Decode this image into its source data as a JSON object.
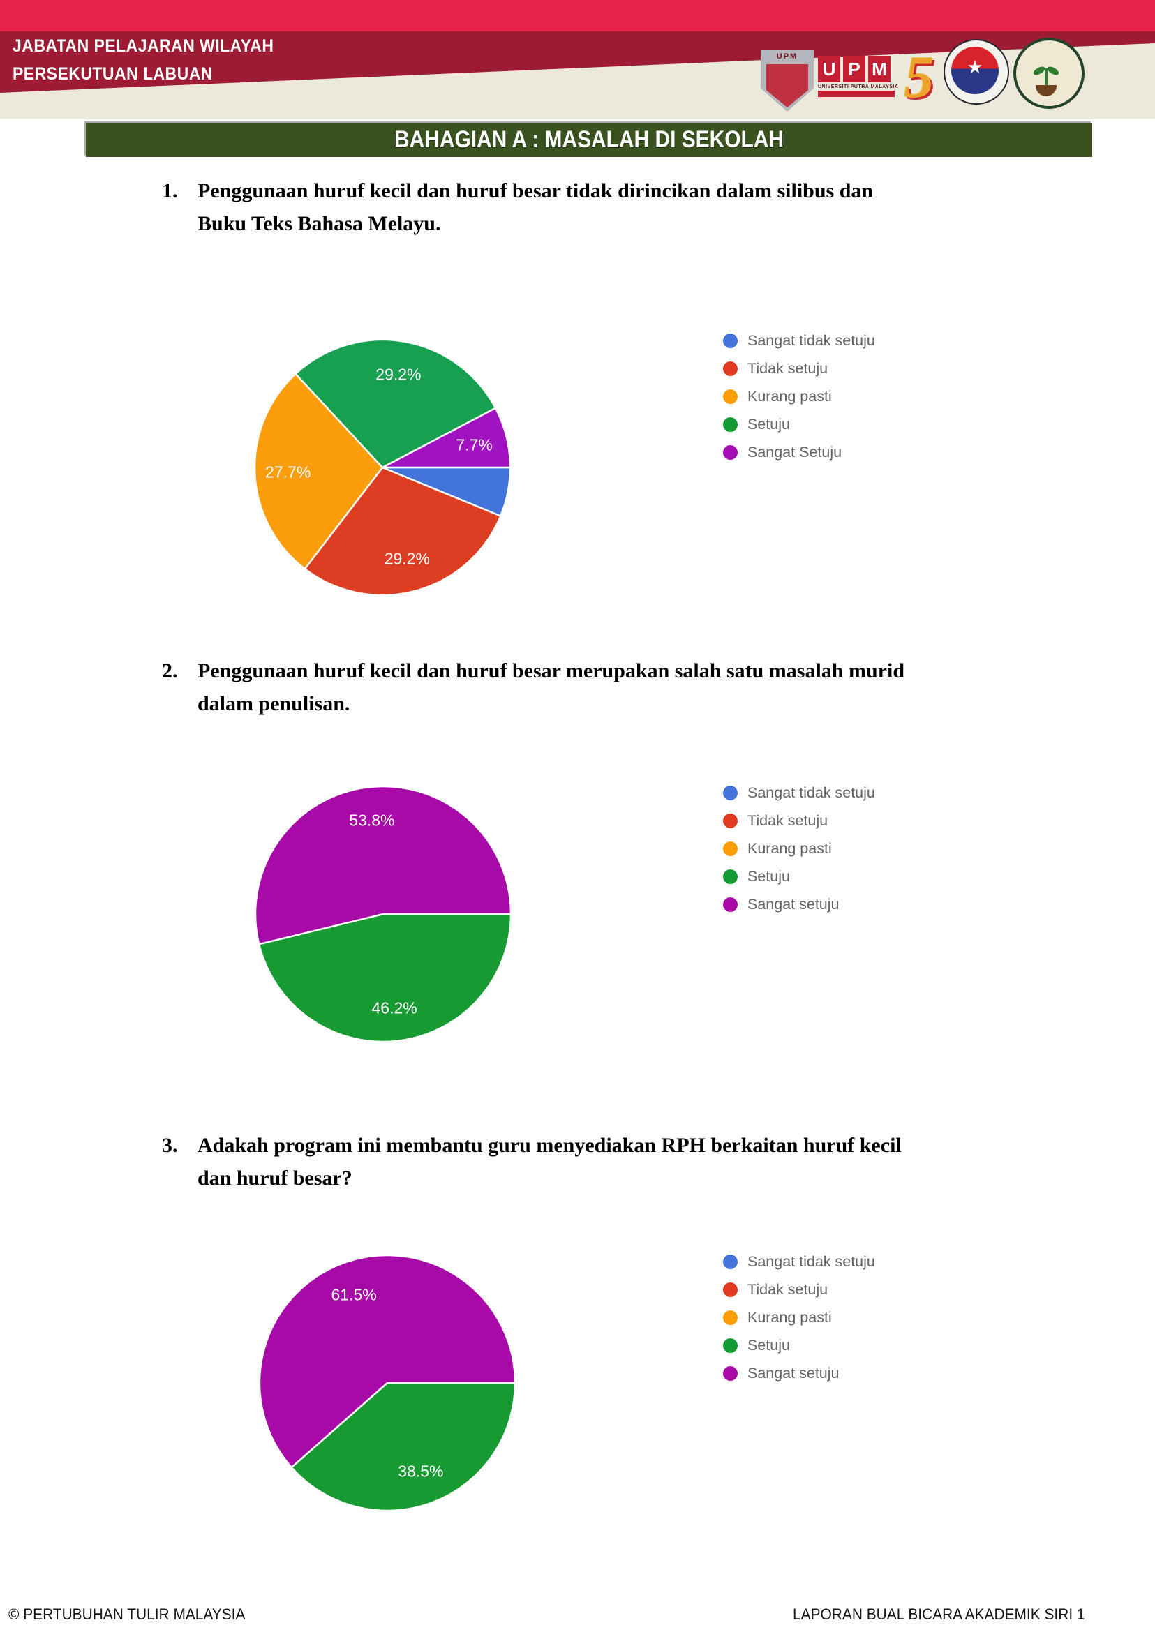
{
  "page": {
    "header": {
      "org_line1": "JABATAN PELAJARAN WILAYAH",
      "org_line2": "PERSEKUTUAN LABUAN",
      "colors": {
        "bright_red": "#E62249",
        "maroon": "#9E1C33",
        "beige": "#ECE8DC"
      },
      "logos": {
        "upm_shield_text": "UPM",
        "upm_wordmark": {
          "letters": [
            "U",
            "P",
            "M"
          ],
          "subtext": "UNIVERSITI PUTRA MALAYSIA"
        },
        "anniversary_numeral": "5"
      }
    },
    "section_title": "BAHAGIAN A : MASALAH DI SEKOLAH",
    "section_bar_color": "#3A5220",
    "footer": {
      "left": "© PERTUBUHAN TULIR MALAYSIA",
      "right": "LAPORAN BUAL BICARA AKADEMIK SIRI 1"
    }
  },
  "chart_data": [
    {
      "type": "pie",
      "question_no": "1.",
      "title": "Penggunaan huruf kecil dan huruf besar tidak dirincikan dalam silibus dan Buku Teks Bahasa Melayu.",
      "title_lines": [
        "Penggunaan huruf kecil dan huruf besar tidak dirincikan dalam silibus dan",
        "Buku Teks Bahasa Melayu."
      ],
      "legend_position": "right",
      "values_unit": "%",
      "legend": [
        {
          "label": "Sangat tidak setuju",
          "color": "#4274DB"
        },
        {
          "label": "Tidak setuju",
          "color": "#E03B21"
        },
        {
          "label": "Kurang pasti",
          "color": "#FC9D03"
        },
        {
          "label": "Setuju",
          "color": "#129B33"
        },
        {
          "label": "Sangat Setuju",
          "color": "#A50CB3"
        }
      ],
      "slices": [
        {
          "label": "Sangat tidak setuju",
          "value": 6.2,
          "display": "",
          "color": "#4274DB"
        },
        {
          "label": "Tidak setuju",
          "value": 29.2,
          "display": "29.2%",
          "color": "#DD3D20"
        },
        {
          "label": "Kurang pasti",
          "value": 27.7,
          "display": "27.7%",
          "color": "#FC9D0C"
        },
        {
          "label": "Setuju",
          "value": 29.2,
          "display": "29.2%",
          "color": "#17A04F"
        },
        {
          "label": "Sangat Setuju",
          "value": 7.7,
          "display": "7.7%",
          "color": "#A112C0"
        }
      ]
    },
    {
      "type": "pie",
      "question_no": "2.",
      "title": "Penggunaan huruf kecil dan huruf besar merupakan salah satu masalah murid dalam penulisan.",
      "title_lines": [
        "Penggunaan huruf kecil dan huruf besar merupakan salah satu masalah murid",
        "dalam penulisan."
      ],
      "legend_position": "right",
      "values_unit": "%",
      "legend": [
        {
          "label": "Sangat tidak setuju",
          "color": "#4274DB"
        },
        {
          "label": "Tidak setuju",
          "color": "#E03B21"
        },
        {
          "label": "Kurang pasti",
          "color": "#FC9D03"
        },
        {
          "label": "Setuju",
          "color": "#129B33"
        },
        {
          "label": "Sangat setuju",
          "color": "#A70AA7"
        }
      ],
      "slices": [
        {
          "label": "Sangat tidak setuju",
          "value": 0,
          "display": "",
          "color": "#4274DB"
        },
        {
          "label": "Tidak setuju",
          "value": 0,
          "display": "",
          "color": "#E03B21"
        },
        {
          "label": "Kurang pasti",
          "value": 0,
          "display": "",
          "color": "#FC9D03"
        },
        {
          "label": "Setuju",
          "value": 46.2,
          "display": "46.2%",
          "color": "#179A31"
        },
        {
          "label": "Sangat setuju",
          "value": 53.8,
          "display": "53.8%",
          "color": "#A70AA7"
        }
      ]
    },
    {
      "type": "pie",
      "question_no": "3.",
      "title": "Adakah program ini membantu guru menyediakan RPH berkaitan huruf kecil dan huruf besar?",
      "title_lines": [
        "Adakah program ini membantu guru menyediakan RPH berkaitan huruf kecil",
        "dan huruf besar?"
      ],
      "legend_position": "right",
      "values_unit": "%",
      "legend": [
        {
          "label": "Sangat tidak setuju",
          "color": "#4274DB"
        },
        {
          "label": "Tidak setuju",
          "color": "#E03B21"
        },
        {
          "label": "Kurang pasti",
          "color": "#FC9D03"
        },
        {
          "label": "Setuju",
          "color": "#129B33"
        },
        {
          "label": "Sangat setuju",
          "color": "#A70AA7"
        }
      ],
      "slices": [
        {
          "label": "Sangat tidak setuju",
          "value": 0,
          "display": "",
          "color": "#4274DB"
        },
        {
          "label": "Tidak setuju",
          "value": 0,
          "display": "",
          "color": "#E03B21"
        },
        {
          "label": "Kurang pasti",
          "value": 0,
          "display": "",
          "color": "#FC9D03"
        },
        {
          "label": "Setuju",
          "value": 38.5,
          "display": "38.5%",
          "color": "#179A31"
        },
        {
          "label": "Sangat setuju",
          "value": 61.5,
          "display": "61.5%",
          "color": "#A70AA7"
        }
      ]
    }
  ]
}
